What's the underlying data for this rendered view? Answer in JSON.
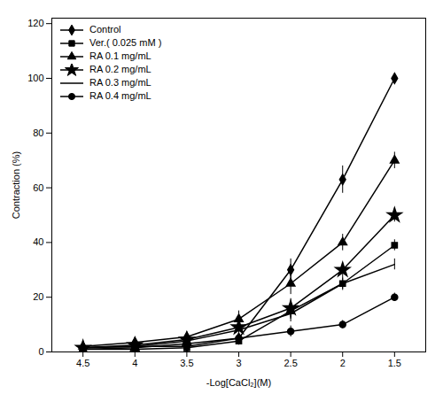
{
  "chart_data": {
    "type": "line",
    "xlabel": "-Log[CaCl₂](M)",
    "ylabel": "Contraction (%)",
    "x": [
      4.5,
      4,
      3.5,
      3,
      2.5,
      2,
      1.5
    ],
    "series": [
      {
        "name": "Control",
        "color": "black",
        "marker": "diamond",
        "values": [
          1.5,
          2.0,
          2.0,
          5.0,
          30.0,
          63.0,
          100.0
        ],
        "yerr": [
          0.5,
          0.5,
          0.5,
          2.0,
          4.0,
          5.0,
          0.0
        ]
      },
      {
        "name": "Ver.( 0.025 mM )",
        "color": "black",
        "marker": "square",
        "values": [
          1.0,
          1.0,
          1.5,
          4.0,
          15.0,
          25.0,
          39.0
        ],
        "yerr": [
          0.3,
          0.3,
          0.5,
          1.5,
          3.0,
          2.5,
          2.0
        ]
      },
      {
        "name": "RA 0.1 mg/mL",
        "color": "black",
        "marker": "triangle",
        "values": [
          2.0,
          3.5,
          5.5,
          12.0,
          25.0,
          40.0,
          70.0
        ],
        "yerr": [
          0.5,
          1.0,
          1.5,
          3.0,
          4.0,
          3.0,
          3.0
        ]
      },
      {
        "name": "RA 0.2 mg/mL",
        "color": "black",
        "marker": "star",
        "values": [
          1.5,
          2.5,
          4.5,
          9.0,
          16.0,
          30.0,
          50.0
        ],
        "yerr": [
          0.4,
          0.8,
          1.2,
          2.5,
          3.5,
          2.5,
          2.5
        ]
      },
      {
        "name": "RA 0.3 mg/mL",
        "color": "black",
        "marker": "none",
        "values": [
          1.5,
          2.0,
          4.0,
          8.0,
          14.0,
          25.0,
          32.0
        ],
        "yerr": [
          0.4,
          0.5,
          1.0,
          2.0,
          3.0,
          2.0,
          2.0
        ]
      },
      {
        "name": "RA 0.4 mg/mL",
        "color": "black",
        "marker": "circle",
        "values": [
          1.0,
          1.5,
          3.0,
          5.0,
          7.5,
          10.0,
          20.0
        ],
        "yerr": [
          0.3,
          0.4,
          0.8,
          1.5,
          2.0,
          1.5,
          1.5
        ]
      }
    ],
    "xlim": [
      4.8,
      1.2
    ],
    "ylim": [
      0,
      122
    ],
    "xticks": [
      4.5,
      4,
      3.5,
      3,
      2.5,
      2,
      1.5
    ],
    "yticks": [
      0,
      20,
      40,
      60,
      80,
      100,
      120
    ],
    "grid": false,
    "legend": "upper left"
  }
}
